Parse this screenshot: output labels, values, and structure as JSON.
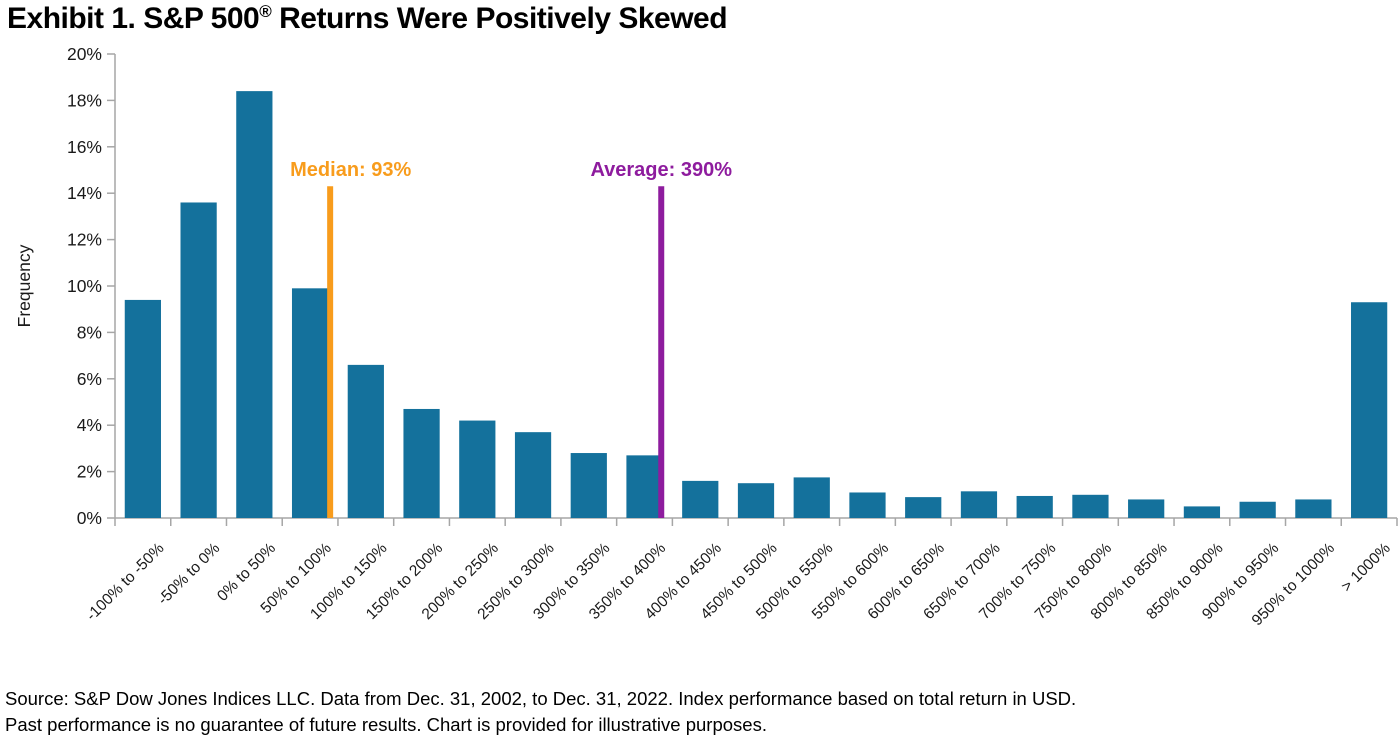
{
  "title": {
    "prefix": "Exhibit 1. S&P 500",
    "registered": "®",
    "suffix": " Returns Were Positively Skewed"
  },
  "chart_data": {
    "type": "bar",
    "title": "Exhibit 1. S&P 500® Returns Were Positively Skewed",
    "xlabel": "",
    "ylabel": "Frequency",
    "ylim": [
      0,
      20
    ],
    "ytick_step": 2,
    "ytick_suffix": "%",
    "grid": false,
    "legend": "none",
    "bar_color": "#14719C",
    "axis_color": "#A6A6A6",
    "tick_text_color": "#1A1A1A",
    "categories": [
      "-100% to -50%",
      "-50% to 0%",
      "0% to 50%",
      "50% to 100%",
      "100% to 150%",
      "150% to 200%",
      "200% to 250%",
      "250% to 300%",
      "300% to 350%",
      "350% to 400%",
      "400% to 450%",
      "450% to 500%",
      "500% to 550%",
      "550% to 600%",
      "600% to 650%",
      "650% to 700%",
      "700% to 750%",
      "750% to 800%",
      "800% to 850%",
      "850% to 900%",
      "900% to 950%",
      "950% to 1000%",
      "> 1000%"
    ],
    "values": [
      9.4,
      13.6,
      18.4,
      9.9,
      6.6,
      4.7,
      4.2,
      3.7,
      2.8,
      2.7,
      1.6,
      1.5,
      1.75,
      1.1,
      0.9,
      1.15,
      0.95,
      1.0,
      0.8,
      0.5,
      0.7,
      0.8,
      9.3
    ],
    "x_axis_buckets": {
      "start": -100,
      "size": 50
    },
    "annotations": [
      {
        "id": "median",
        "label": "Median: 93%",
        "value": 93,
        "color": "#F89C1C",
        "line_top_value": 14.3,
        "label_align": "start"
      },
      {
        "id": "average",
        "label": "Average: 390%",
        "value": 390,
        "color": "#8E1C9E",
        "line_top_value": 14.3,
        "label_align": "middle"
      }
    ]
  },
  "source": {
    "line1": "Source: S&P Dow Jones Indices LLC. Data from Dec. 31, 2002, to Dec. 31, 2022. Index performance based on total return in USD.",
    "line2": "Past performance is no guarantee of future results. Chart is provided for illustrative purposes."
  }
}
